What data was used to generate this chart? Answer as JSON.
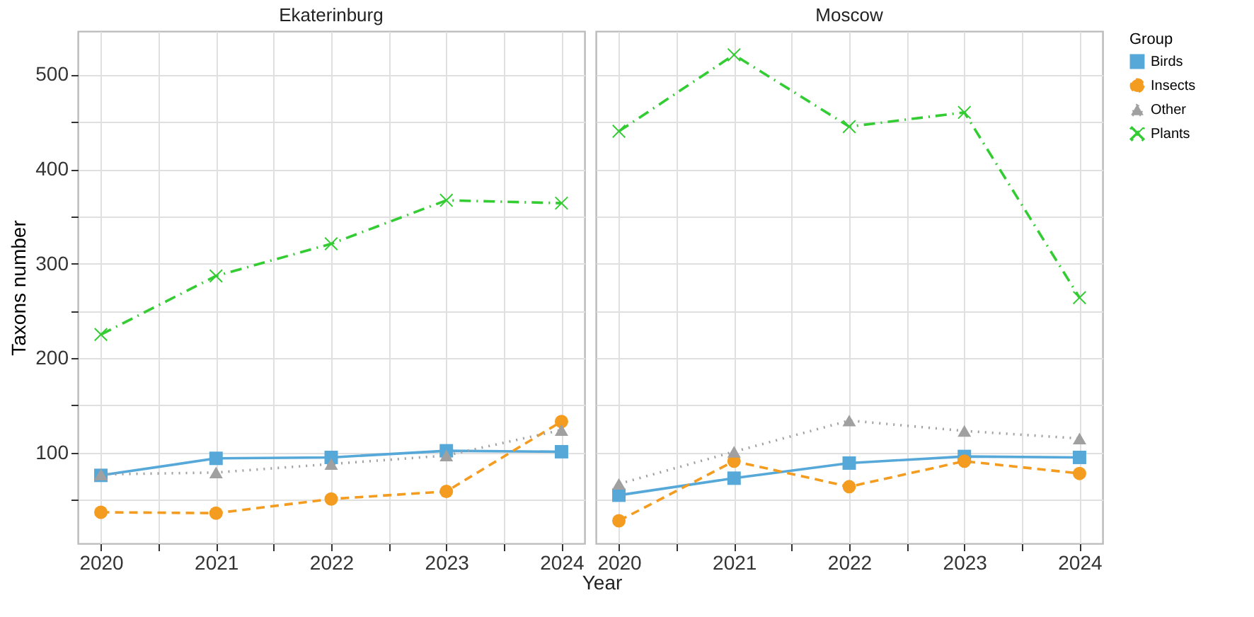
{
  "chart_data": [
    {
      "type": "line",
      "title": "Ekaterinburg",
      "xlabel": "Year",
      "ylabel": "Taxons number",
      "legend_title": "Group",
      "x": [
        2020,
        2021,
        2022,
        2023,
        2024
      ],
      "series": [
        {
          "name": "Birds",
          "color": "#56a8d8",
          "marker": "square",
          "line_style": "solid",
          "values": [
            76,
            94,
            95,
            102,
            101
          ]
        },
        {
          "name": "Insects",
          "color": "#f39c1f",
          "marker": "circle",
          "line_style": "dashed",
          "values": [
            37,
            36,
            51,
            59,
            133
          ]
        },
        {
          "name": "Other",
          "color": "#a0a0a0",
          "marker": "triangle",
          "line_style": "dotted",
          "values": [
            77,
            79,
            88,
            97,
            124
          ]
        },
        {
          "name": "Plants",
          "color": "#33cc33",
          "marker": "cross",
          "line_style": "dashdot",
          "values": [
            225,
            287,
            321,
            367,
            364
          ]
        }
      ],
      "xlim": [
        2019.8,
        2024.2
      ],
      "ylim": [
        4,
        546
      ],
      "xticks": [
        2020,
        {
          "value": 2020.5,
          "label": null
        },
        2021,
        {
          "value": 2021.5,
          "label": null
        },
        2022,
        {
          "value": 2022.5,
          "label": null
        },
        2023,
        {
          "value": 2023.5,
          "label": null
        },
        2024
      ],
      "yticks": [
        {
          "value": 50,
          "label": null
        },
        100,
        {
          "value": 150,
          "label": null
        },
        200,
        {
          "value": 250,
          "label": null
        },
        300,
        {
          "value": 350,
          "label": null
        },
        400,
        {
          "value": 450,
          "label": null
        },
        500
      ],
      "grid": true,
      "legend": "right"
    },
    {
      "type": "line",
      "title": "Moscow",
      "x": [
        2020,
        2021,
        2022,
        2023,
        2024
      ],
      "series": [
        {
          "name": "Birds",
          "color": "#56a8d8",
          "marker": "square",
          "line_style": "solid",
          "values": [
            55,
            73,
            89,
            96,
            95
          ]
        },
        {
          "name": "Insects",
          "color": "#f39c1f",
          "marker": "circle",
          "line_style": "dashed",
          "values": [
            28,
            91,
            64,
            91,
            78
          ]
        },
        {
          "name": "Other",
          "color": "#a0a0a0",
          "marker": "triangle",
          "line_style": "dotted",
          "values": [
            67,
            101,
            134,
            123,
            115
          ]
        },
        {
          "name": "Plants",
          "color": "#33cc33",
          "marker": "cross",
          "line_style": "dashdot",
          "values": [
            440,
            521,
            445,
            460,
            264
          ]
        }
      ],
      "xlim": [
        2019.8,
        2024.2
      ],
      "ylim": [
        4,
        546
      ],
      "xticks": [
        2020,
        {
          "value": 2020.5,
          "label": null
        },
        2021,
        {
          "value": 2021.5,
          "label": null
        },
        2022,
        {
          "value": 2022.5,
          "label": null
        },
        2023,
        {
          "value": 2023.5,
          "label": null
        },
        2024
      ],
      "yticks": [
        {
          "value": 50,
          "label": null
        },
        100,
        {
          "value": 150,
          "label": null
        },
        200,
        {
          "value": 250,
          "label": null
        },
        300,
        {
          "value": 350,
          "label": null
        },
        400,
        {
          "value": 450,
          "label": null
        },
        500
      ],
      "tick_labels": "x",
      "grid": true
    }
  ]
}
